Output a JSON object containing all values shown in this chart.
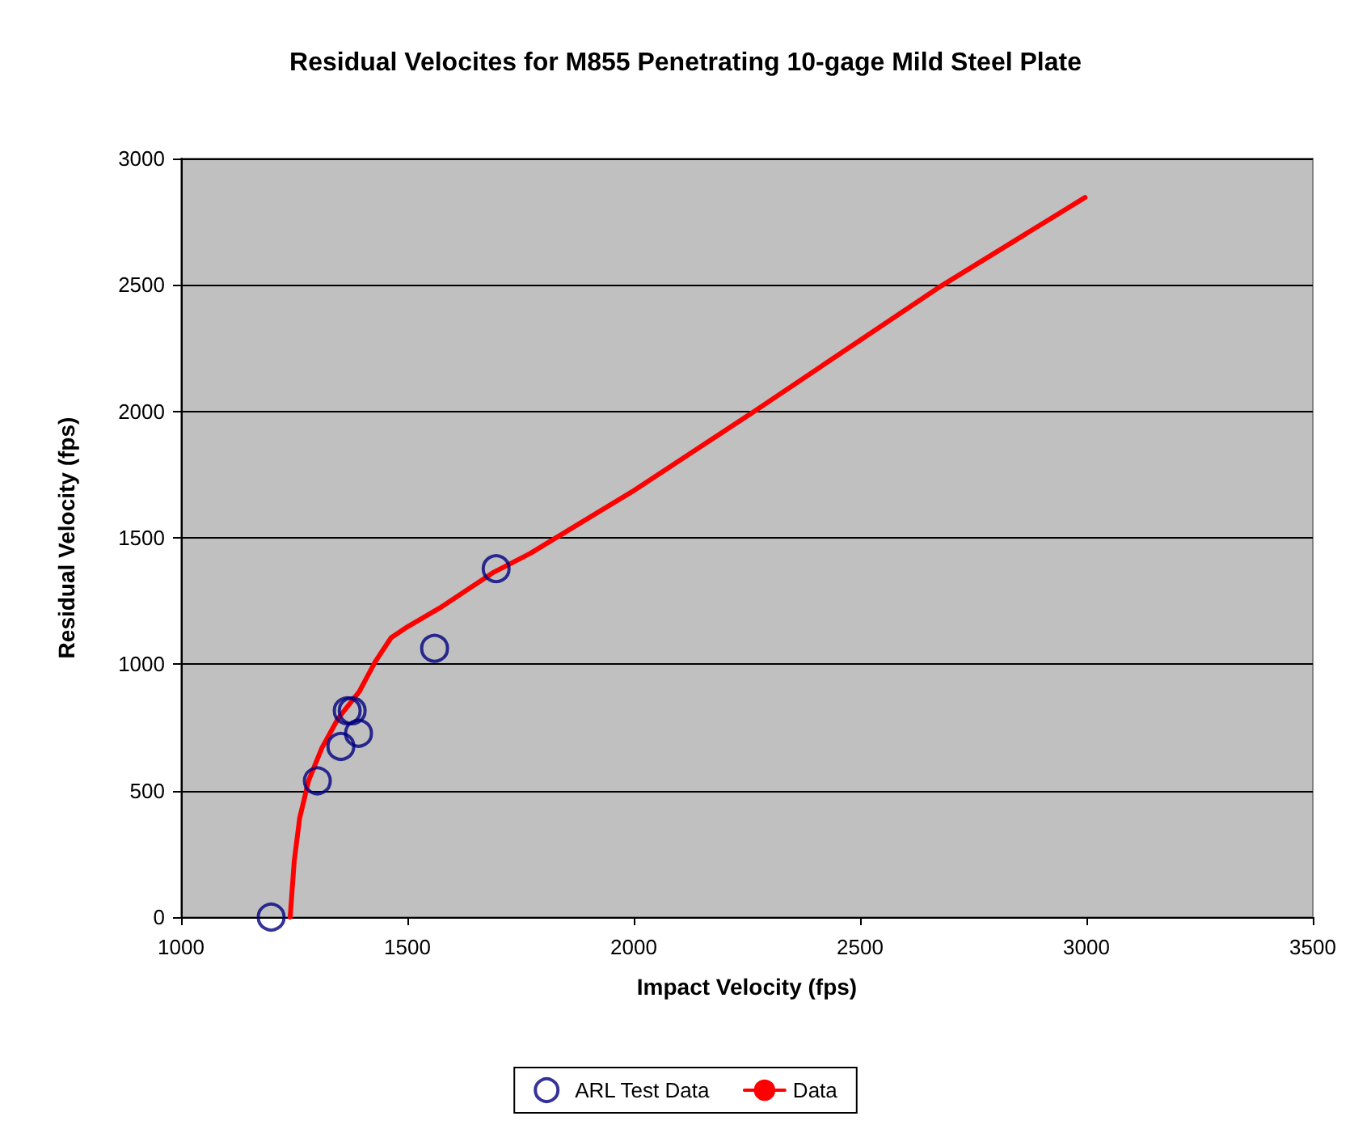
{
  "chart_data": {
    "type": "scatter",
    "title": "Residual Velocites for M855 Penetrating 10-gage Mild Steel Plate",
    "xlabel": "Impact Velocity (fps)",
    "ylabel": "Residual Velocity (fps)",
    "xlim": [
      1000,
      3500
    ],
    "xticks": [
      1000,
      1500,
      2000,
      2500,
      3000,
      3500
    ],
    "ylim": [
      0,
      3000
    ],
    "yticks": [
      0,
      500,
      1000,
      1500,
      2000,
      2500,
      3000
    ],
    "grid": "y",
    "legend": "bottom",
    "series": [
      {
        "name": "ARL Test Data",
        "marker": "circle",
        "color": "#000080",
        "x": [
          1199,
          1301,
          1353,
          1367,
          1378,
          1392,
          1560,
          1696
        ],
        "values": [
          0,
          539,
          675,
          816,
          816,
          727,
          1063,
          1378
        ]
      },
      {
        "name": "Data",
        "type": "line",
        "marker": "none",
        "color": "#ff0000",
        "x": [
          1241,
          1250,
          1262,
          1282,
          1311,
          1347,
          1394,
          1429,
          1464,
          1500,
          1571,
          1688,
          1771,
          1877,
          1995,
          2266,
          2679,
          2997
        ],
        "values": [
          0,
          222,
          392,
          541,
          669,
          786,
          893,
          1010,
          1105,
          1148,
          1222,
          1361,
          1438,
          1553,
          1681,
          2000,
          2496,
          2846
        ]
      }
    ]
  }
}
